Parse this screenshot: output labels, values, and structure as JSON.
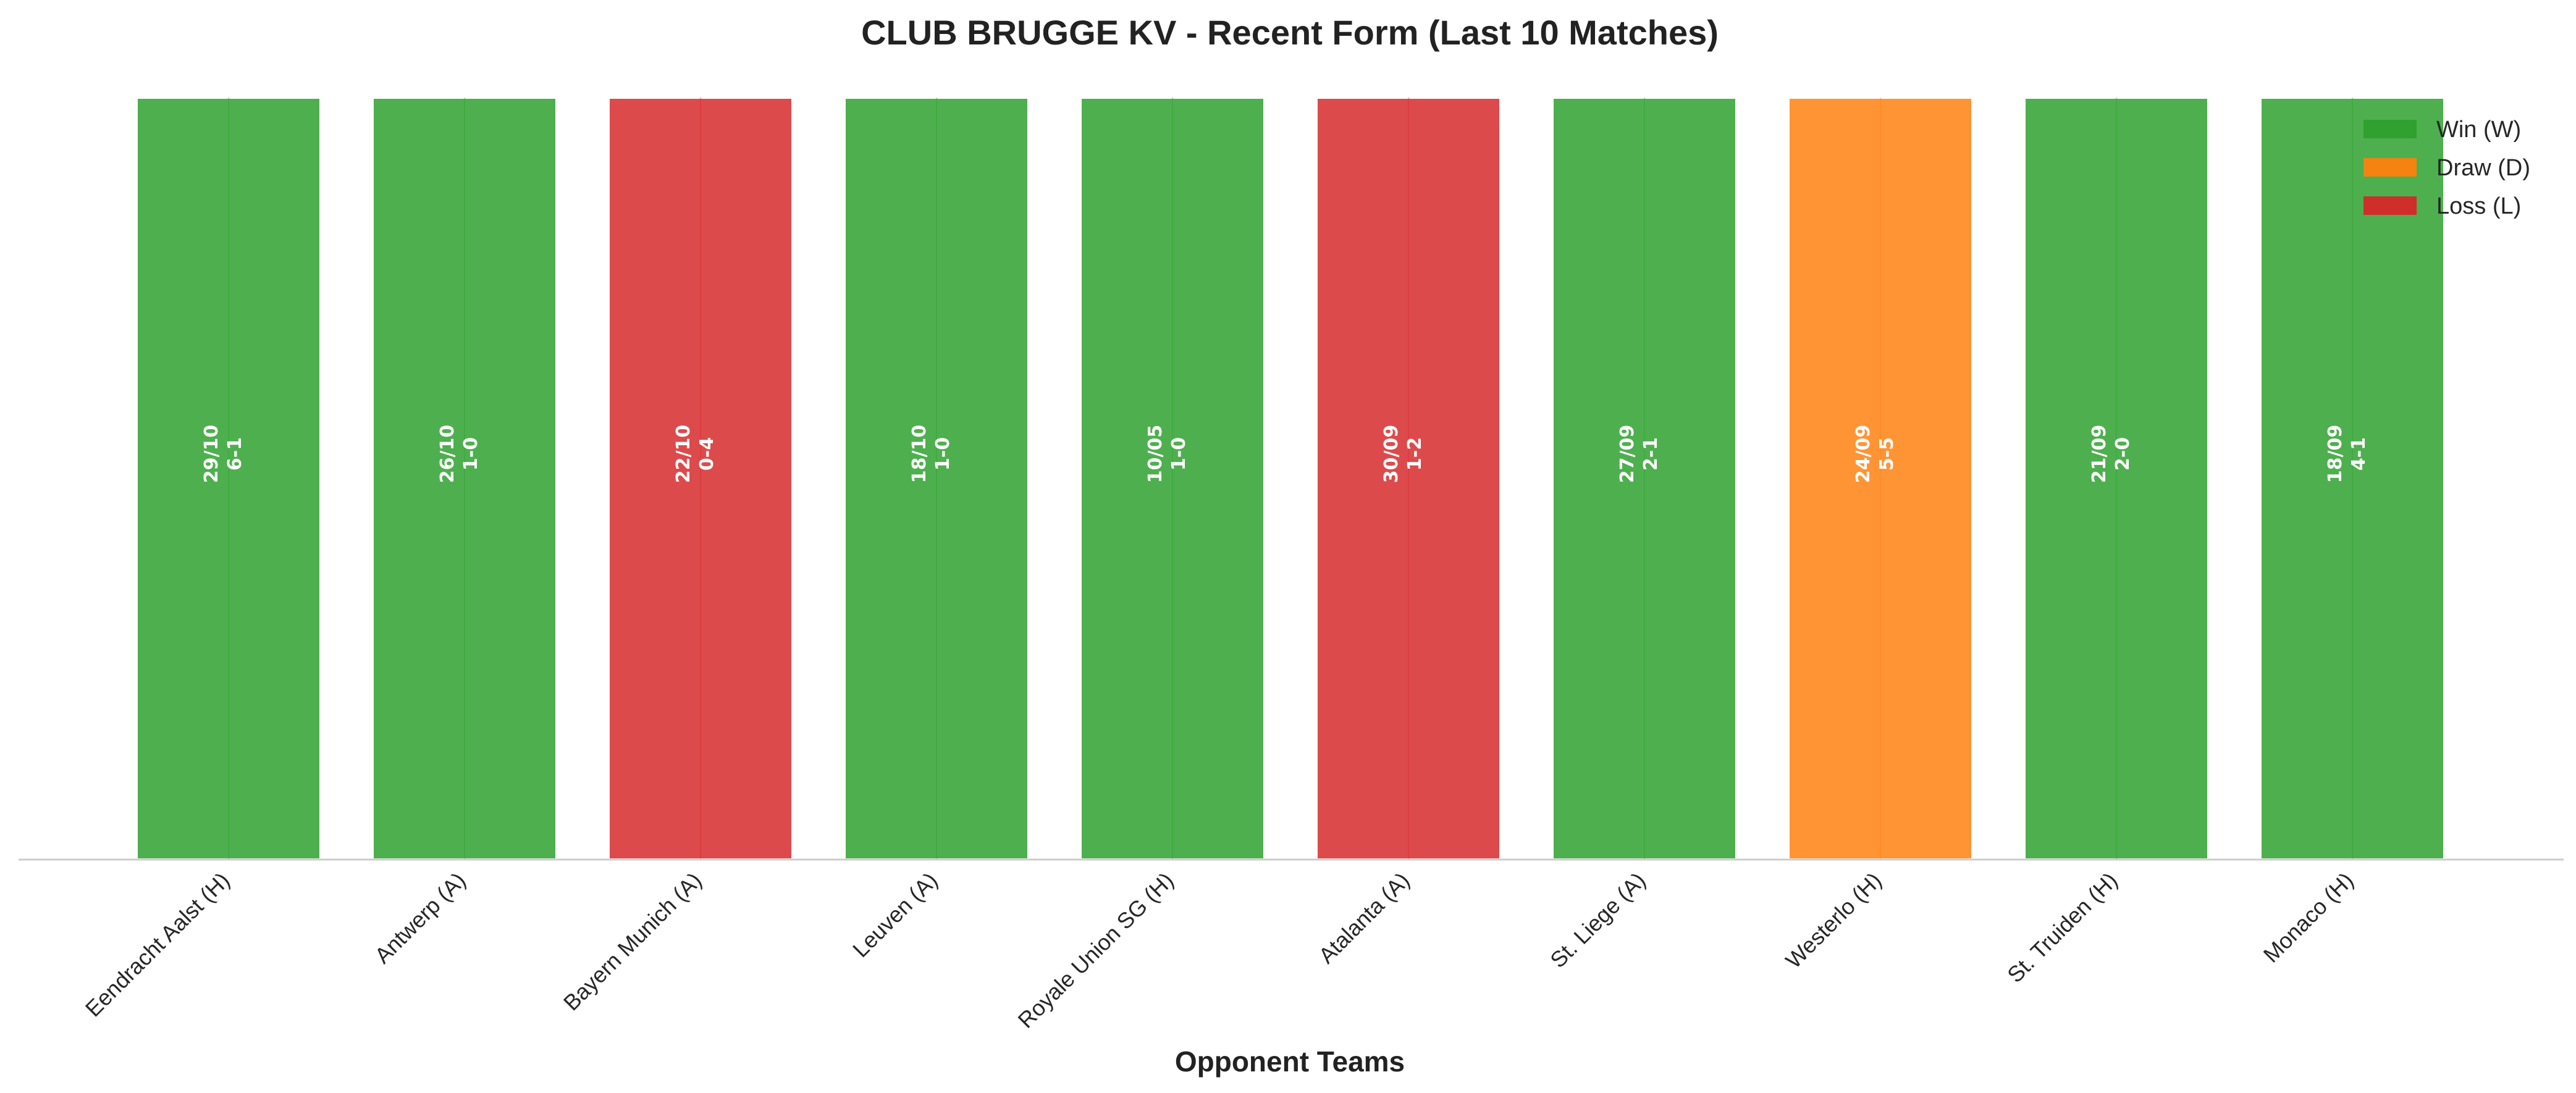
{
  "chart_data": {
    "type": "bar",
    "title": "CLUB BRUGGE KV - Recent Form (Last 10 Matches)",
    "xlabel": "Opponent Teams",
    "ylabel": "",
    "grid": false,
    "legend_position": "top-right",
    "categories": [
      "Eendracht Aalst (H)",
      "Antwerp (A)",
      "Bayern Munich (A)",
      "Leuven (A)",
      "Royale Union SG (H)",
      "Atalanta (A)",
      "St. Liege (A)",
      "Westerlo (H)",
      "St. Truiden (H)",
      "Monaco (H)"
    ],
    "matches": [
      {
        "date": "29/10",
        "score": "6-1",
        "result": "W"
      },
      {
        "date": "26/10",
        "score": "1-0",
        "result": "W"
      },
      {
        "date": "22/10",
        "score": "0-4",
        "result": "L"
      },
      {
        "date": "18/10",
        "score": "1-0",
        "result": "W"
      },
      {
        "date": "10/05",
        "score": "1-0",
        "result": "W"
      },
      {
        "date": "30/09",
        "score": "1-2",
        "result": "L"
      },
      {
        "date": "27/09",
        "score": "2-1",
        "result": "W"
      },
      {
        "date": "24/09",
        "score": "5-5",
        "result": "D"
      },
      {
        "date": "21/09",
        "score": "2-0",
        "result": "W"
      },
      {
        "date": "18/09",
        "score": "4-1",
        "result": "W"
      }
    ],
    "values": [
      1,
      1,
      1,
      1,
      1,
      1,
      1,
      1,
      1,
      1
    ],
    "legend": [
      {
        "key": "W",
        "label": "Win (W)",
        "color": "#2ca02c"
      },
      {
        "key": "D",
        "label": "Draw (D)",
        "color": "#ff7f0e"
      },
      {
        "key": "L",
        "label": "Loss (L)",
        "color": "#d62728"
      }
    ]
  }
}
